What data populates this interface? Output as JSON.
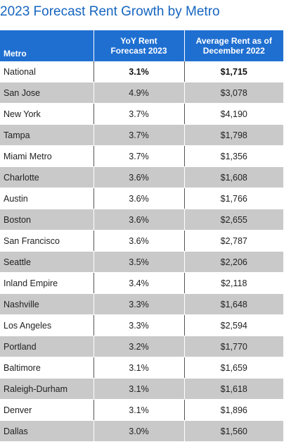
{
  "title": "2023 Forecast Rent Growth by Metro",
  "table": {
    "headers": {
      "metro": "Metro",
      "forecast_line1": "YoY Rent",
      "forecast_line2": "Forecast 2023",
      "rent_line1": "Average Rent as of",
      "rent_line2": "December 2022"
    },
    "rows": [
      {
        "metro": "National",
        "forecast": "3.1%",
        "rent": "$1,715"
      },
      {
        "metro": "San Jose",
        "forecast": "4.9%",
        "rent": "$3,078"
      },
      {
        "metro": "New York",
        "forecast": "3.7%",
        "rent": "$4,190"
      },
      {
        "metro": "Tampa",
        "forecast": "3.7%",
        "rent": "$1,798"
      },
      {
        "metro": "Miami Metro",
        "forecast": "3.7%",
        "rent": "$1,356"
      },
      {
        "metro": "Charlotte",
        "forecast": "3.6%",
        "rent": "$1,608"
      },
      {
        "metro": "Austin",
        "forecast": "3.6%",
        "rent": "$1,766"
      },
      {
        "metro": "Boston",
        "forecast": "3.6%",
        "rent": "$2,655"
      },
      {
        "metro": "San Francisco",
        "forecast": "3.6%",
        "rent": "$2,787"
      },
      {
        "metro": "Seattle",
        "forecast": "3.5%",
        "rent": "$2,206"
      },
      {
        "metro": "Inland Empire",
        "forecast": "3.4%",
        "rent": "$2,118"
      },
      {
        "metro": "Nashville",
        "forecast": "3.3%",
        "rent": "$1,648"
      },
      {
        "metro": "Los Angeles",
        "forecast": "3.3%",
        "rent": "$2,594"
      },
      {
        "metro": "Portland",
        "forecast": "3.2%",
        "rent": "$1,770"
      },
      {
        "metro": "Baltimore",
        "forecast": "3.1%",
        "rent": "$1,659"
      },
      {
        "metro": "Raleigh-Durham",
        "forecast": "3.1%",
        "rent": "$1,618"
      },
      {
        "metro": "Denver",
        "forecast": "3.1%",
        "rent": "$1,896"
      },
      {
        "metro": "Dallas",
        "forecast": "3.0%",
        "rent": "$1,560"
      }
    ]
  },
  "colors": {
    "title": "#1565c0",
    "header_bg": "#1f6fd1",
    "shaded_row": "#c9c9c9"
  }
}
